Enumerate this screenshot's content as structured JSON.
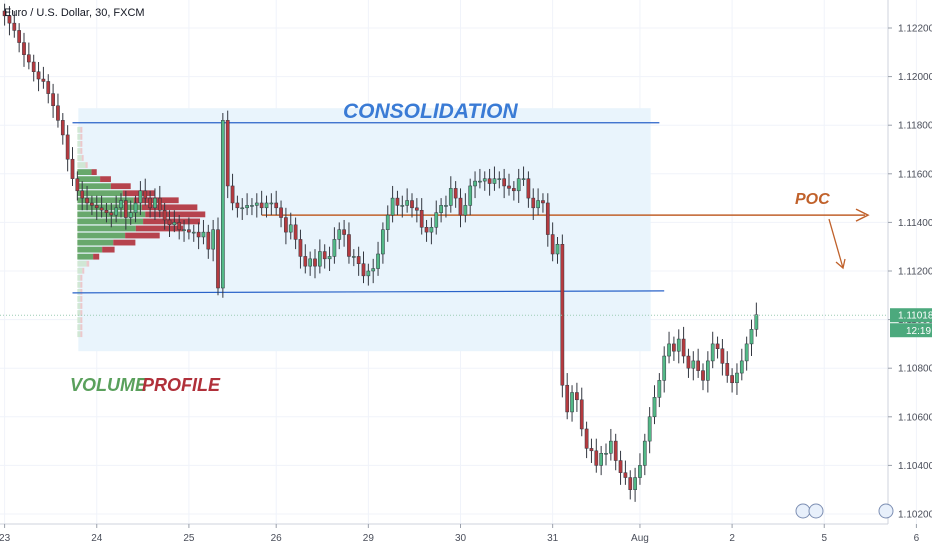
{
  "header": {
    "title": "Euro / U.S. Dollar, 30, FXCM"
  },
  "colors": {
    "up": "#53b987",
    "down": "#b43a3f",
    "wick": "#333740",
    "line_blue": "#2a63c9",
    "poc": "#c0612b",
    "zone": "#e9f4fc",
    "vp_green": "#5aa05c",
    "vp_red": "#b0303a",
    "last_tag": "#4ca97d",
    "grid": "#f0f3fa"
  },
  "chart_data": {
    "type": "candlestick",
    "symbol": "Euro / U.S. Dollar",
    "timeframe": "30",
    "source": "FXCM",
    "ylim": [
      1.1015,
      1.1231
    ],
    "y_ticks": [
      1.102,
      1.104,
      1.106,
      1.108,
      1.11,
      1.112,
      1.114,
      1.116,
      1.118,
      1.12,
      1.122
    ],
    "x_ticks": [
      {
        "label": "23",
        "bar": 0
      },
      {
        "label": "24",
        "bar": 19
      },
      {
        "label": "25",
        "bar": 38
      },
      {
        "label": "26",
        "bar": 56
      },
      {
        "label": "29",
        "bar": 75
      },
      {
        "label": "30",
        "bar": 94
      },
      {
        "label": "31",
        "bar": 113
      },
      {
        "label": "Aug",
        "bar": 131
      },
      {
        "label": "2",
        "bar": 150
      },
      {
        "label": "5",
        "bar": 169
      },
      {
        "label": "6",
        "bar": 188
      }
    ],
    "closes": [
      1.1225,
      1.1222,
      1.1219,
      1.1214,
      1.1209,
      1.1206,
      1.1202,
      1.1199,
      1.1198,
      1.1193,
      1.1188,
      1.1182,
      1.1176,
      1.1166,
      1.1158,
      1.1153,
      1.115,
      1.1148,
      1.1147,
      1.1146,
      1.1145,
      1.1144,
      1.1143,
      1.1146,
      1.1149,
      1.1142,
      1.1144,
      1.1148,
      1.1153,
      1.115,
      1.1146,
      1.115,
      1.1145,
      1.1141,
      1.1139,
      1.114,
      1.1137,
      1.1137,
      1.1136,
      1.1136,
      1.1134,
      1.1136,
      1.1129,
      1.1137,
      1.1113,
      1.1182,
      1.1155,
      1.1148,
      1.1146,
      1.1146,
      1.1147,
      1.1147,
      1.1148,
      1.1146,
      1.1148,
      1.1148,
      1.1146,
      1.1142,
      1.1136,
      1.1139,
      1.1133,
      1.1126,
      1.1122,
      1.1125,
      1.1122,
      1.1128,
      1.1125,
      1.1126,
      1.1133,
      1.1137,
      1.1135,
      1.1126,
      1.1126,
      1.1123,
      1.1118,
      1.112,
      1.1121,
      1.1127,
      1.1137,
      1.1143,
      1.115,
      1.1147,
      1.1147,
      1.1149,
      1.1146,
      1.1145,
      1.1138,
      1.1136,
      1.1138,
      1.1144,
      1.1147,
      1.1147,
      1.1154,
      1.115,
      1.1143,
      1.1147,
      1.1155,
      1.1157,
      1.1157,
      1.1158,
      1.1156,
      1.1158,
      1.1158,
      1.1155,
      1.1154,
      1.1153,
      1.1158,
      1.1158,
      1.115,
      1.1146,
      1.1149,
      1.1148,
      1.1135,
      1.1127,
      1.1131,
      1.1073,
      1.1062,
      1.107,
      1.1067,
      1.1055,
      1.1047,
      1.1046,
      1.104,
      1.1045,
      1.1045,
      1.105,
      1.1042,
      1.1037,
      1.1035,
      1.103,
      1.1035,
      1.104,
      1.105,
      1.106,
      1.1068,
      1.1075,
      1.1085,
      1.109,
      1.1087,
      1.1092,
      1.1085,
      1.108,
      1.1083,
      1.1079,
      1.1075,
      1.1083,
      1.109,
      1.1088,
      1.1082,
      1.1077,
      1.1074,
      1.1078,
      1.1083,
      1.109,
      1.1096,
      1.1102
    ],
    "last_price": "1.11018",
    "countdown": "12:19",
    "consolidation": {
      "label": "CONSOLIDATION",
      "top": 1.1181,
      "bottom": 1.1111
    },
    "poc": {
      "label": "POC",
      "price": 1.1143
    },
    "volume_profile": {
      "label_volume": "VOLUME",
      "label_profile": "PROFILE"
    }
  }
}
